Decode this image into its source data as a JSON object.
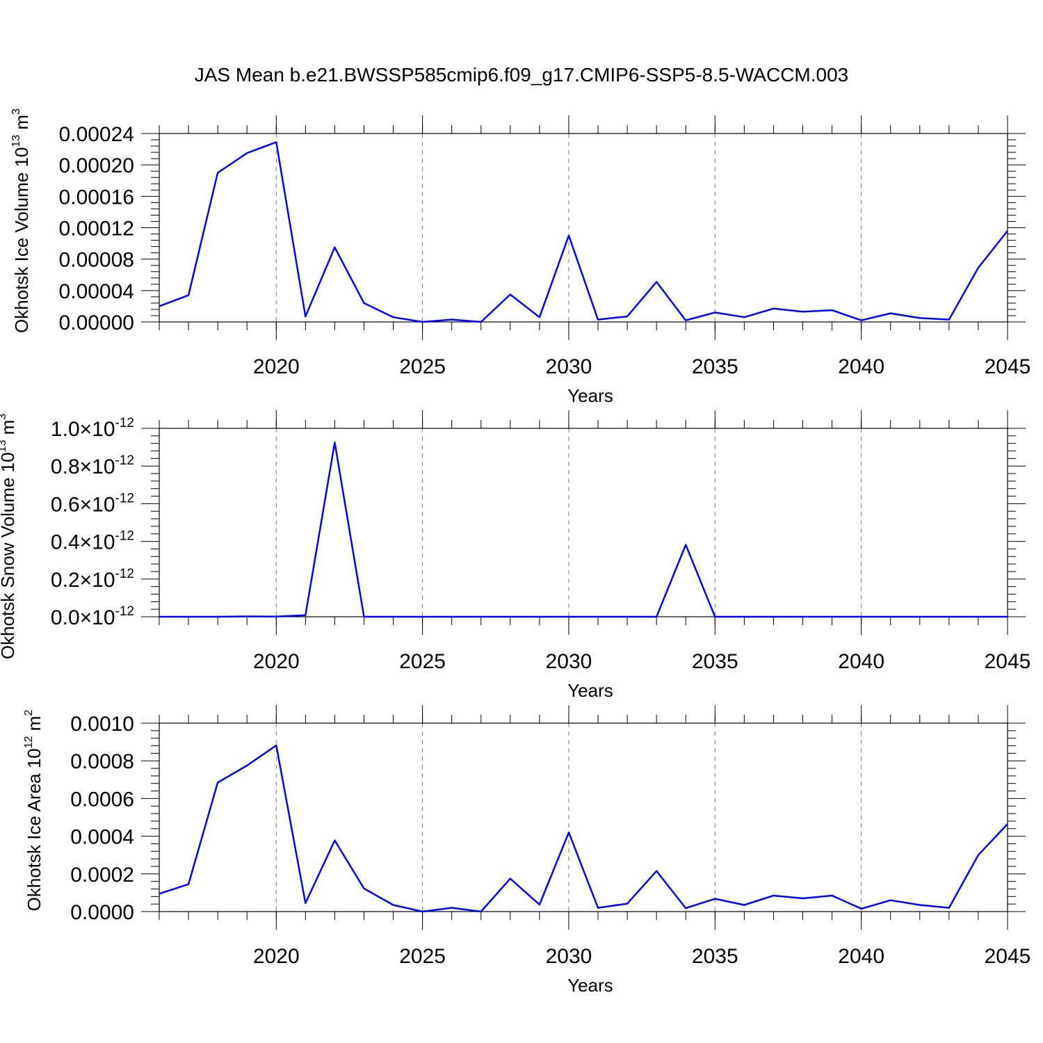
{
  "title": "JAS Mean b.e21.BWSSP585cmip6.f09_g17.CMIP6-SSP5-8.5-WACCM.003",
  "line_color": "#0000ff",
  "chart_data": [
    {
      "type": "line",
      "xlabel": "Years",
      "ylabel": "Okhotsk Ice Volume 10",
      "ylabel_exp": "13",
      "ylabel_unit": " m",
      "ylabel_unit_exp": "3",
      "xlim": [
        2016,
        2045
      ],
      "ylim": [
        0,
        0.00024
      ],
      "x_ticks": [
        2020,
        2025,
        2030,
        2035,
        2040,
        2045
      ],
      "y_ticks": [
        0,
        4e-05,
        8e-05,
        0.00012,
        0.00016,
        0.0002,
        0.00024
      ],
      "y_tick_labels": [
        "0.00000",
        "0.00004",
        "0.00008",
        "0.00012",
        "0.00016",
        "0.00020",
        "0.00024"
      ],
      "grid_x": true,
      "x": [
        2016,
        2017,
        2018,
        2019,
        2020,
        2021,
        2022,
        2023,
        2024,
        2025,
        2026,
        2027,
        2028,
        2029,
        2030,
        2031,
        2032,
        2033,
        2034,
        2035,
        2036,
        2037,
        2038,
        2039,
        2040,
        2041,
        2042,
        2043,
        2044,
        2045
      ],
      "values": [
        2e-05,
        3.4e-05,
        0.00019,
        0.000215,
        0.000229,
        7e-06,
        9.5e-05,
        2.4e-05,
        6e-06,
        0.0,
        3e-06,
        0.0,
        3.5e-05,
        6e-06,
        0.00011,
        3e-06,
        7e-06,
        5.1e-05,
        2e-06,
        1.2e-05,
        6e-06,
        1.7e-05,
        1.3e-05,
        1.5e-05,
        2e-06,
        1.1e-05,
        5e-06,
        3e-06,
        6.9e-05,
        0.000116
      ]
    },
    {
      "type": "line",
      "xlabel": "Years",
      "ylabel": "Okhotsk Snow Volume 10",
      "ylabel_exp": "13",
      "ylabel_unit": " m",
      "ylabel_unit_exp": "3",
      "xlim": [
        2016,
        2045
      ],
      "ylim": [
        0,
        1e-12
      ],
      "x_ticks": [
        2020,
        2025,
        2030,
        2035,
        2040,
        2045
      ],
      "y_ticks": [
        0,
        2e-13,
        4e-13,
        6e-13,
        8e-13,
        1e-12
      ],
      "y_tick_labels": [
        "0.0",
        "0.2",
        "0.4",
        "0.6",
        "0.8",
        "1.0"
      ],
      "y_tick_suffix": "×10",
      "y_tick_exp": "-12",
      "grid_x": true,
      "x": [
        2016,
        2017,
        2018,
        2019,
        2020,
        2021,
        2022,
        2023,
        2024,
        2025,
        2026,
        2027,
        2028,
        2029,
        2030,
        2031,
        2032,
        2033,
        2034,
        2035,
        2036,
        2037,
        2038,
        2039,
        2040,
        2041,
        2042,
        2043,
        2044,
        2045
      ],
      "values": [
        0,
        0,
        0,
        2e-15,
        1e-15,
        8e-15,
        9.25e-13,
        0,
        0,
        0,
        0,
        0,
        0,
        0,
        0,
        0,
        0,
        0,
        3.82e-13,
        0,
        0,
        0,
        0,
        0,
        0,
        0,
        0,
        0,
        0,
        0
      ]
    },
    {
      "type": "line",
      "xlabel": "Years",
      "ylabel": "Okhotsk Ice Area 10",
      "ylabel_exp": "12",
      "ylabel_unit": " m",
      "ylabel_unit_exp": "2",
      "xlim": [
        2016,
        2045
      ],
      "ylim": [
        0,
        0.001
      ],
      "x_ticks": [
        2020,
        2025,
        2030,
        2035,
        2040,
        2045
      ],
      "y_ticks": [
        0,
        0.0002,
        0.0004,
        0.0006,
        0.0008,
        0.001
      ],
      "y_tick_labels": [
        "0.0000",
        "0.0002",
        "0.0004",
        "0.0006",
        "0.0008",
        "0.0010"
      ],
      "grid_x": true,
      "x": [
        2016,
        2017,
        2018,
        2019,
        2020,
        2021,
        2022,
        2023,
        2024,
        2025,
        2026,
        2027,
        2028,
        2029,
        2030,
        2031,
        2032,
        2033,
        2034,
        2035,
        2036,
        2037,
        2038,
        2039,
        2040,
        2041,
        2042,
        2043,
        2044,
        2045
      ],
      "values": [
        9.5e-05,
        0.000145,
        0.000685,
        0.000775,
        0.000882,
        4.5e-05,
        0.000378,
        0.000122,
        3.5e-05,
        0.0,
        2e-05,
        0.0,
        0.000175,
        3.7e-05,
        0.00042,
        2e-05,
        4.2e-05,
        0.000215,
        1.8e-05,
        6.8e-05,
        3.5e-05,
        8.5e-05,
        7e-05,
        8.5e-05,
        1.5e-05,
        6e-05,
        3.5e-05,
        2e-05,
        0.0003,
        0.000465
      ]
    }
  ]
}
